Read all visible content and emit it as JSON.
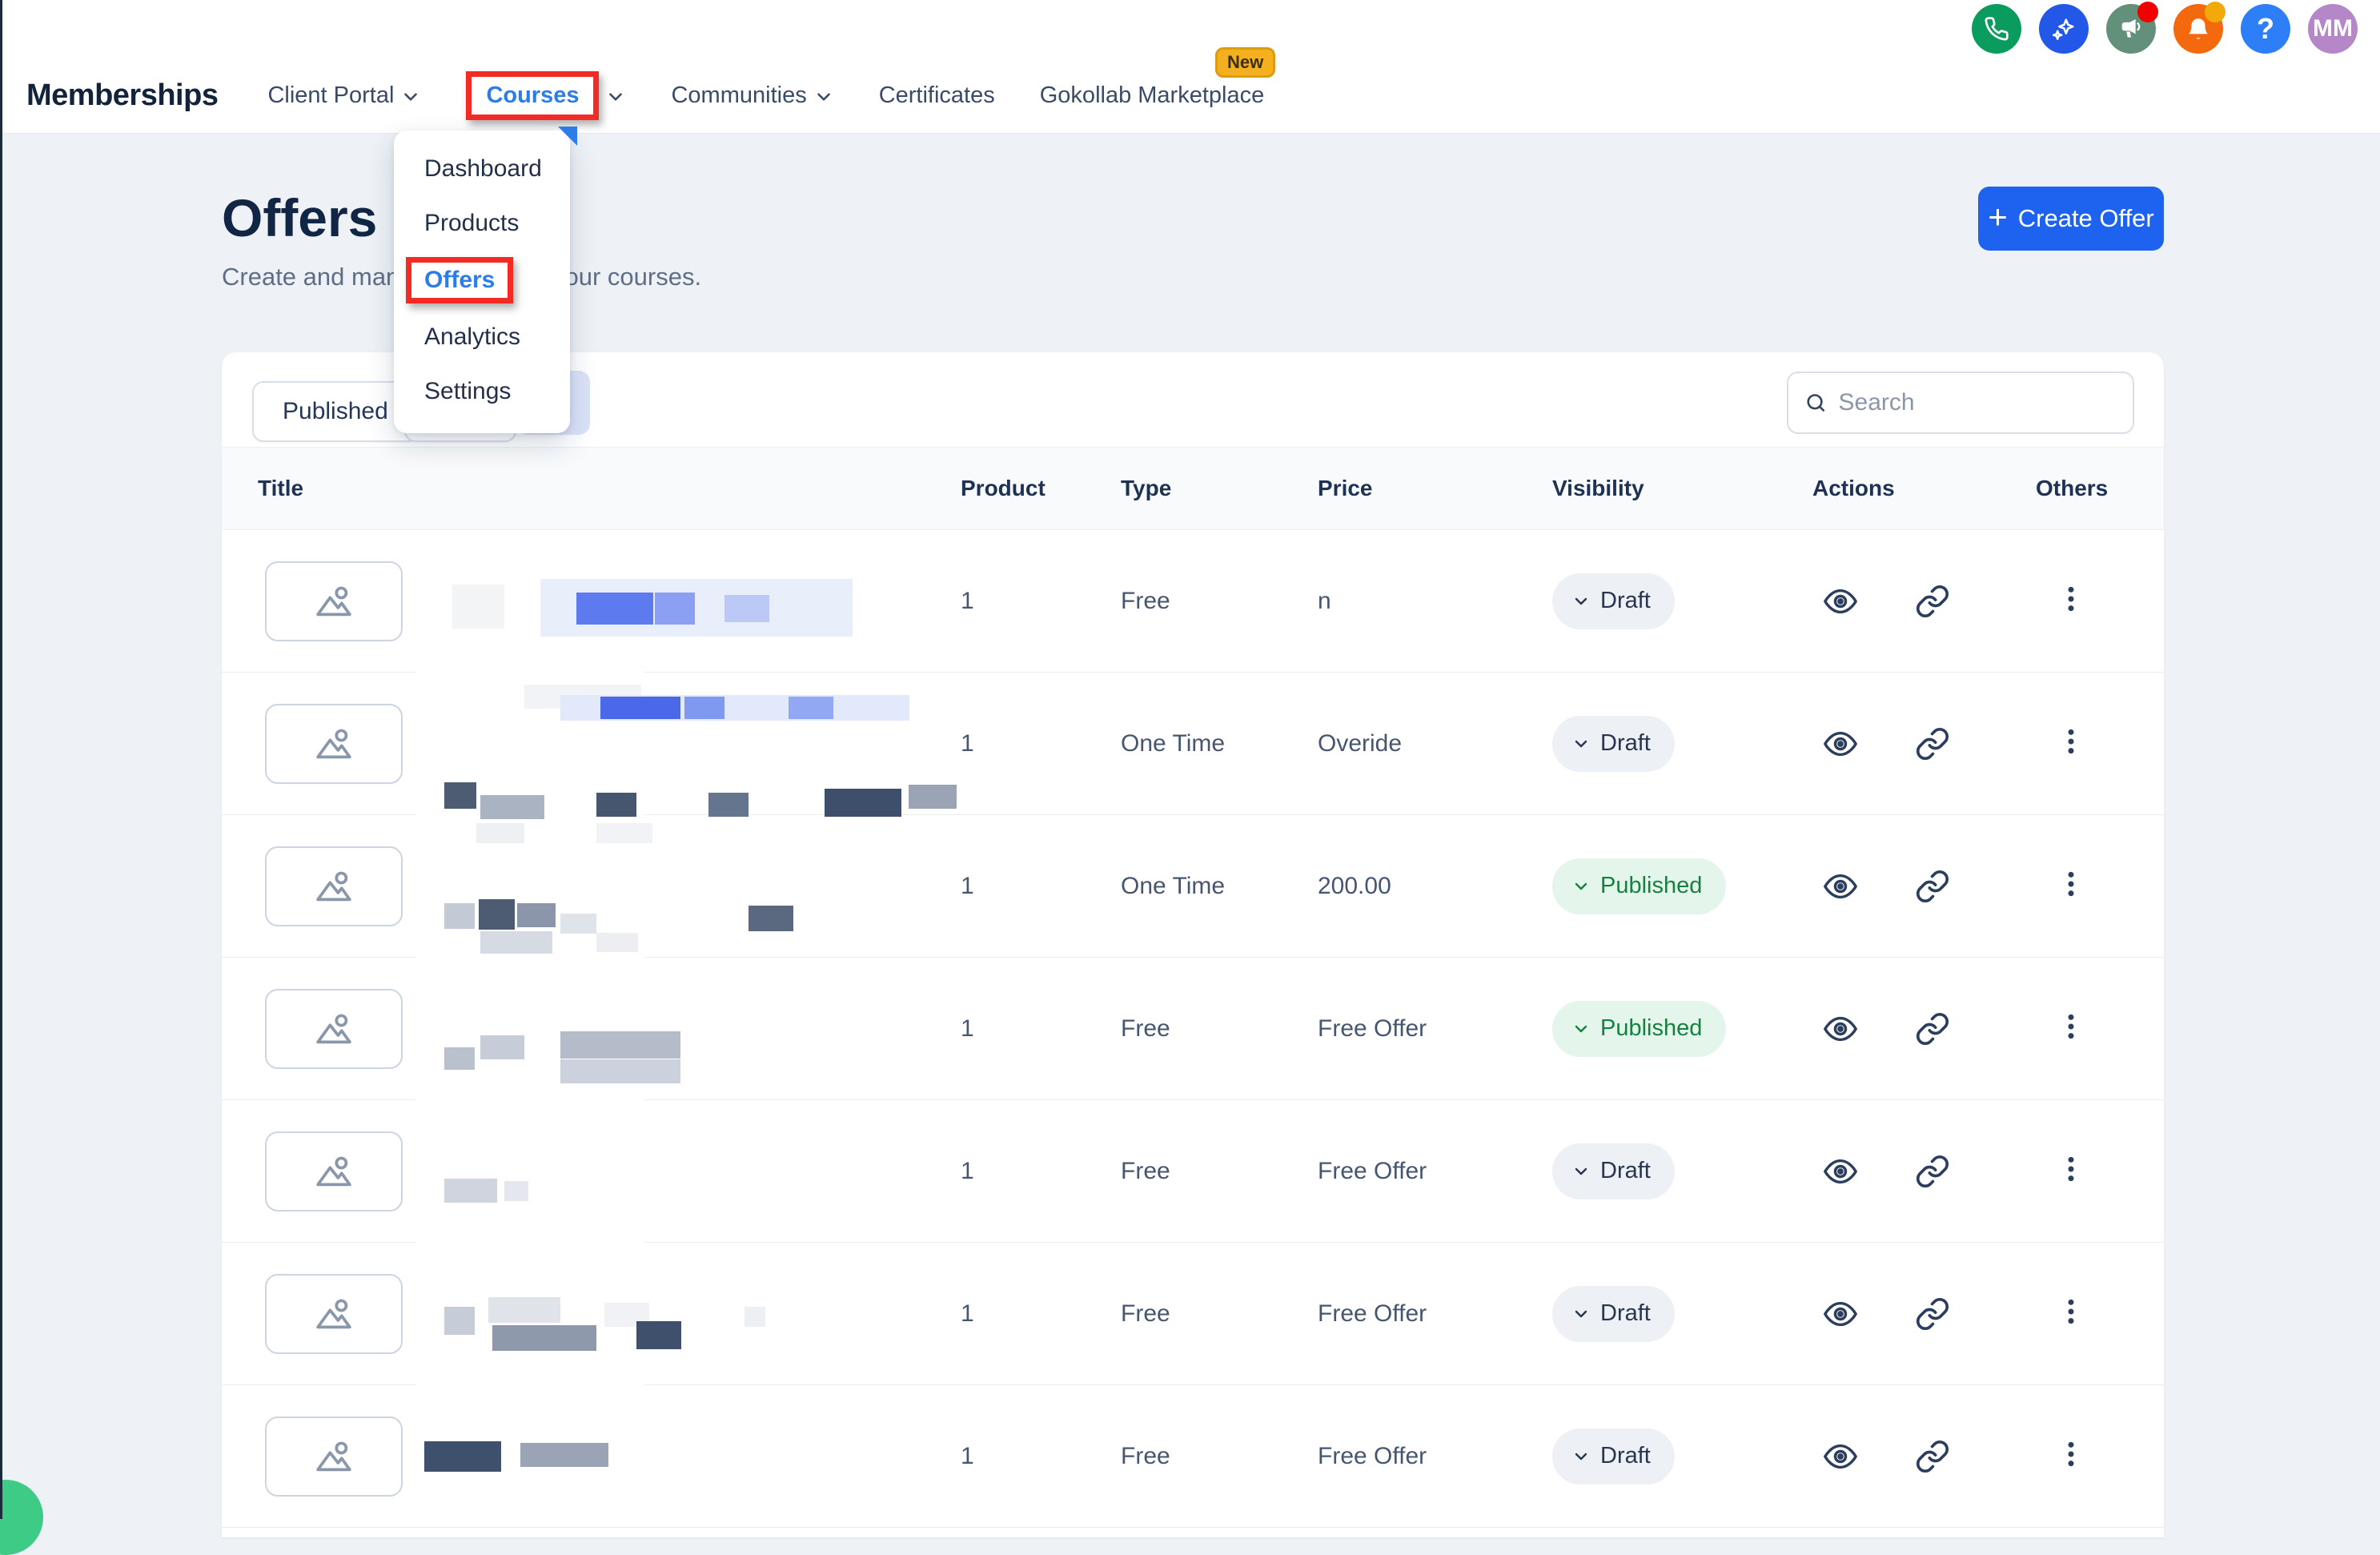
{
  "brand": "Memberships",
  "nav": {
    "items": [
      {
        "label": "Client Portal",
        "chevron": true
      },
      {
        "label": "Courses",
        "chevron": true,
        "active": true,
        "highlighted": true
      },
      {
        "label": "Communities",
        "chevron": true
      },
      {
        "label": "Certificates",
        "chevron": false
      },
      {
        "label": "Gokollab Marketplace",
        "chevron": false,
        "badge": "New"
      }
    ]
  },
  "header_icons": [
    {
      "name": "phone",
      "bg": "#0a9b5e"
    },
    {
      "name": "sparkles",
      "bg": "#2257e7"
    },
    {
      "name": "megaphone",
      "bg": "#62907b",
      "dot": "#f20000"
    },
    {
      "name": "bell",
      "bg": "#f4690e",
      "dot": "#f2a90a"
    },
    {
      "name": "help",
      "bg": "#2d7ef7",
      "label": "?"
    },
    {
      "name": "avatar",
      "bg": "#b687c8",
      "label": "MM"
    }
  ],
  "courses_menu": {
    "items": [
      {
        "label": "Dashboard"
      },
      {
        "label": "Products"
      },
      {
        "label": "Offers",
        "active": true,
        "highlighted": true
      },
      {
        "label": "Analytics"
      },
      {
        "label": "Settings"
      }
    ]
  },
  "page": {
    "title": "Offers",
    "subtitle": "Create and manage offers for your courses.",
    "create_button": "Create Offer"
  },
  "toolbar": {
    "published_tab": "Published",
    "search_placeholder": "Search"
  },
  "table": {
    "columns": [
      "Title",
      "Product",
      "Type",
      "Price",
      "Visibility",
      "Actions",
      "Others"
    ],
    "rows": [
      {
        "product": "1",
        "type": "Free",
        "price": "n",
        "visibility": "Draft",
        "status": "draft"
      },
      {
        "product": "1",
        "type": "One Time",
        "price": "Overide",
        "visibility": "Draft",
        "status": "draft"
      },
      {
        "product": "1",
        "type": "One Time",
        "price": "200.00",
        "visibility": "Published",
        "status": "published"
      },
      {
        "product": "1",
        "type": "Free",
        "price": "Free Offer",
        "visibility": "Published",
        "status": "published"
      },
      {
        "product": "1",
        "type": "Free",
        "price": "Free Offer",
        "visibility": "Draft",
        "status": "draft"
      },
      {
        "product": "1",
        "type": "Free",
        "price": "Free Offer",
        "visibility": "Draft",
        "status": "draft"
      },
      {
        "product": "1",
        "type": "Free",
        "price": "Free Offer",
        "visibility": "Draft",
        "status": "draft"
      }
    ]
  },
  "colors": {
    "accent": "#1e63f0",
    "highlight_red": "#f22b24",
    "link_blue": "#2b7de9",
    "draft_bg": "#edf0f5",
    "draft_text": "#27364e",
    "published_bg": "#e4f6eb",
    "published_text": "#178040",
    "new_badge_bg": "#f5b01f",
    "chat_green": "#3ecb86"
  }
}
